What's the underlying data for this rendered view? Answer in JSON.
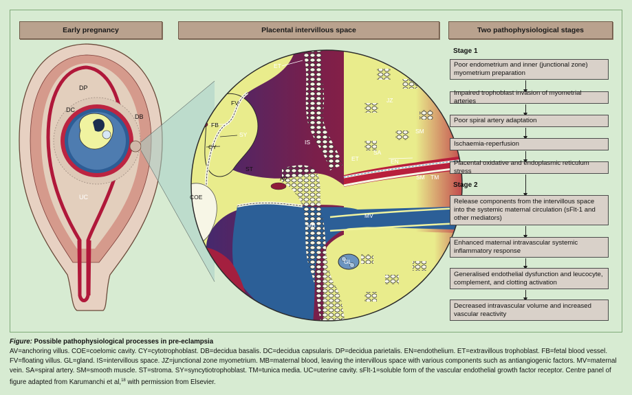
{
  "panels": {
    "left": "Early pregnancy",
    "center": "Placental intervillous space",
    "right": "Two pathophysiological stages"
  },
  "uterus_labels": {
    "dp": "DP",
    "dc": "DC",
    "db": "DB",
    "uc": "UC"
  },
  "placenta_labels": {
    "et_top": "ET",
    "fv": "FV",
    "jz": "JZ",
    "fb": "FB",
    "sy": "SY",
    "cy": "CY",
    "is": "IS",
    "sm_top": "SM",
    "sa": "SA",
    "et_mid": "ET",
    "en": "EN",
    "sm_bot": "SM",
    "tm": "TM",
    "st": "ST",
    "av": "AV",
    "coe": "COE",
    "mb": "MB",
    "mv": "MV",
    "gl": "GL"
  },
  "stages": {
    "stage1_label": "Stage 1",
    "stage2_label": "Stage 2",
    "stage1": [
      "Poor endometrium and inner (junctional zone) myometrium preparation",
      "Impaired trophoblast invasion of myometrial arteries",
      "Poor spiral artery adaptation",
      "Ischaemia-reperfusion",
      "Placental oxidative and endoplasmic reticulum stress"
    ],
    "stage2": [
      "Release components from the intervillous space into the systemic maternal circulation (sFlt-1 and other mediators)",
      "Enhanced maternal intravascular systemic inflammatory response",
      "Generalised endothelial dysfunction and leucocyte, complement, and clotting activation",
      "Decreased intravascular volume and increased vascular reactivity"
    ]
  },
  "caption": {
    "figure_word": "Figure:",
    "title": " Possible pathophysiological processes in pre-eclampsia",
    "body": "AV=anchoring villus. COE=coelomic cavity. CY=cytotrophoblast. DB=decidua basalis. DC=decidua capsularis. DP=decidua parietalis. EN=endothelium. ET=extravillous trophoblast. FB=fetal blood vessel. FV=floating villus. GL=gland. IS=intervillous space. JZ=junctional zone myometrium. MB=maternal blood, leaving the intervillous space with various components such as antiangiogenic factors. MV=maternal vein. SA=spiral artery. SM=smooth muscle. ST=stroma. SY=syncytiotrophoblast. TM=tunica media. UC=uterine cavity. sFlt-1=soluble form of the vascular endothelial growth factor receptor. Centre panel of figure adapted from Karumanchi et al,",
    "superscript": "18",
    "tail": " with permission from Elsevier."
  },
  "colors": {
    "background": "#d7ebd2",
    "header_fill": "#b9a28e",
    "box_fill": "#d9d1c9",
    "maternal_red": "#8e1c3a",
    "maternal_blue": "#2c5f97",
    "stroma_yellow": "#e9ec8c"
  }
}
